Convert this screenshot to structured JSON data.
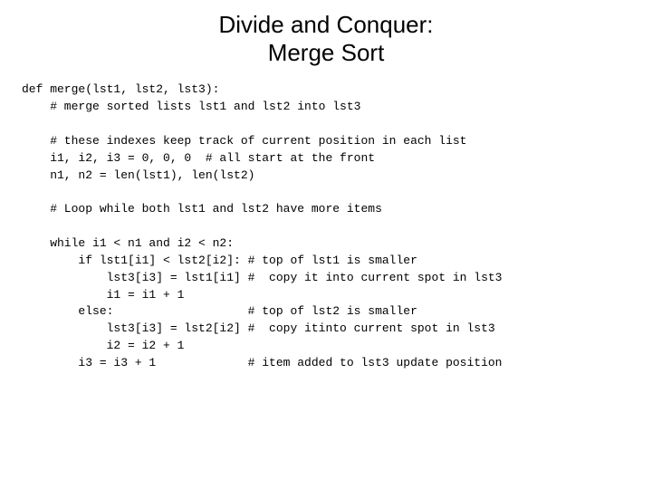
{
  "title": {
    "line1": "Divide and Conquer:",
    "line2": "Merge Sort"
  },
  "code": {
    "l01": "def merge(lst1, lst2, lst3):",
    "l02": "    # merge sorted lists lst1 and lst2 into lst3",
    "l03": "",
    "l04": "    # these indexes keep track of current position in each list",
    "l05": "    i1, i2, i3 = 0, 0, 0  # all start at the front",
    "l06": "    n1, n2 = len(lst1), len(lst2)",
    "l07": "",
    "l08": "    # Loop while both lst1 and lst2 have more items",
    "l09": "",
    "l10": "    while i1 < n1 and i2 < n2:",
    "l11": "        if lst1[i1] < lst2[i2]: # top of lst1 is smaller",
    "l12": "            lst3[i3] = lst1[i1] #  copy it into current spot in lst3",
    "l13": "            i1 = i1 + 1",
    "l14": "        else:                   # top of lst2 is smaller",
    "l15": "            lst3[i3] = lst2[i2] #  copy itinto current spot in lst3",
    "l16": "            i2 = i2 + 1",
    "l17": "        i3 = i3 + 1             # item added to lst3 update position"
  },
  "styles": {
    "title_fontsize": 26,
    "code_fontsize": 13,
    "background_color": "#ffffff",
    "text_color": "#000000",
    "font_family_title": "Arial",
    "font_family_code": "Courier New"
  }
}
